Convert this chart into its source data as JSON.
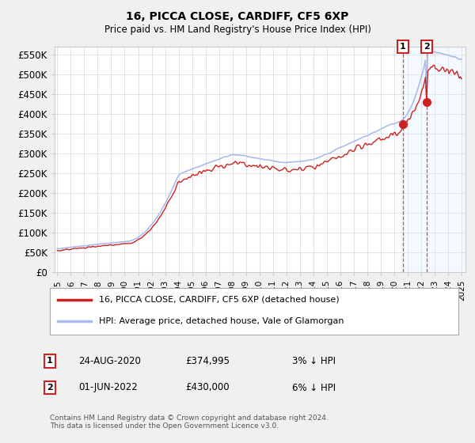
{
  "title1": "16, PICCA CLOSE, CARDIFF, CF5 6XP",
  "title2": "Price paid vs. HM Land Registry's House Price Index (HPI)",
  "ylabel_ticks": [
    "£0",
    "£50K",
    "£100K",
    "£150K",
    "£200K",
    "£250K",
    "£300K",
    "£350K",
    "£400K",
    "£450K",
    "£500K",
    "£550K"
  ],
  "ytick_vals": [
    0,
    50000,
    100000,
    150000,
    200000,
    250000,
    300000,
    350000,
    400000,
    450000,
    500000,
    550000
  ],
  "ylim": [
    0,
    570000
  ],
  "xlim_start": 1994.8,
  "xlim_end": 2025.3,
  "hpi_color": "#aabbee",
  "price_color": "#cc2222",
  "sale1_date": 2020.65,
  "sale1_price": 374995,
  "sale2_date": 2022.42,
  "sale2_price": 430000,
  "legend_label1": "16, PICCA CLOSE, CARDIFF, CF5 6XP (detached house)",
  "legend_label2": "HPI: Average price, detached house, Vale of Glamorgan",
  "annotation1_date": "24-AUG-2020",
  "annotation1_price": "£374,995",
  "annotation1_pct": "3% ↓ HPI",
  "annotation2_date": "01-JUN-2022",
  "annotation2_price": "£430,000",
  "annotation2_pct": "6% ↓ HPI",
  "footer": "Contains HM Land Registry data © Crown copyright and database right 2024.\nThis data is licensed under the Open Government Licence v3.0.",
  "background_color": "#f0f0f0",
  "plot_bg_color": "#ffffff",
  "shade_color": "#ddeeff"
}
